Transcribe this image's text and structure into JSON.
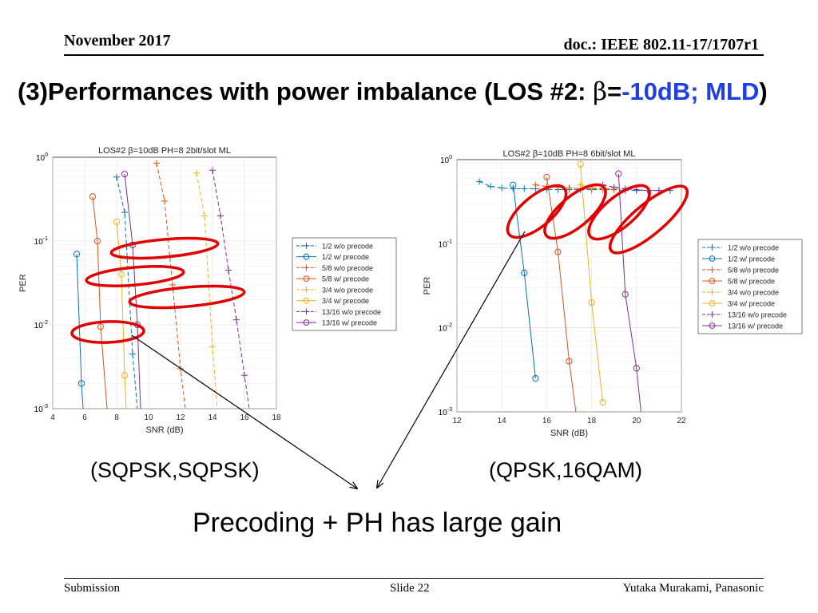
{
  "header": {
    "date": "November 2017",
    "doc": "doc.: IEEE 802.11-17/1707r1"
  },
  "title": {
    "part1": "(3)Performances with power imbalance (LOS #2: ",
    "beta": "β",
    "eq": "=",
    "part2": "-10dB; MLD",
    "close": ")"
  },
  "labels": {
    "left": "(SQPSK,SQPSK)",
    "right": "(QPSK,16QAM)"
  },
  "caption": "Precoding + PH has large gain",
  "footer": {
    "left": "Submission",
    "center": "Slide 22",
    "right": "Yutaka Murakami, Panasonic"
  },
  "colors": {
    "title_blue": "#1f3ee6",
    "ellipse_red": "#e00000"
  },
  "chart_data": [
    {
      "type": "line",
      "title": "LOS#2 β=10dB PH=8 2bit/slot ML",
      "xlabel": "SNR (dB)",
      "ylabel": "PER",
      "xlim": [
        4,
        18
      ],
      "ylim": [
        0.001,
        1
      ],
      "yscale": "log",
      "xticks": [
        4,
        6,
        8,
        10,
        12,
        14,
        16,
        18
      ],
      "ytick_labels": [
        "10^0",
        "10^-1",
        "10^-2",
        "10^-3"
      ],
      "grid": true,
      "legend_position": "right",
      "series": [
        {
          "name": "1/2 w/o precode",
          "color": "#0072bd",
          "dashed": true,
          "marker": "+",
          "points": [
            [
              8,
              0.58
            ],
            [
              8.5,
              0.22
            ],
            [
              9,
              0.0045
            ],
            [
              9.3,
              0.001
            ]
          ]
        },
        {
          "name": "1/2 w/ precode",
          "color": "#0072bd",
          "dashed": false,
          "marker": "o",
          "points": [
            [
              5.5,
              0.07
            ],
            [
              5.8,
              0.002
            ],
            [
              5.9,
              0.001
            ]
          ]
        },
        {
          "name": "5/8 w/o precode",
          "color": "#d95319",
          "dashed": true,
          "marker": "+",
          "points": [
            [
              10.5,
              0.85
            ],
            [
              11,
              0.3
            ],
            [
              11.5,
              0.03
            ],
            [
              12,
              0.003
            ],
            [
              12.3,
              0.001
            ]
          ]
        },
        {
          "name": "5/8 w/ precode",
          "color": "#d95319",
          "dashed": false,
          "marker": "o",
          "points": [
            [
              6.5,
              0.34
            ],
            [
              6.8,
              0.1
            ],
            [
              7,
              0.0095
            ],
            [
              7.4,
              0.001
            ]
          ]
        },
        {
          "name": "3/4 w/o precode",
          "color": "#edb120",
          "dashed": true,
          "marker": "+",
          "points": [
            [
              13,
              0.65
            ],
            [
              13.5,
              0.2
            ],
            [
              14,
              0.0055
            ],
            [
              14.3,
              0.001
            ]
          ]
        },
        {
          "name": "3/4 w/ precode",
          "color": "#edb120",
          "dashed": false,
          "marker": "o",
          "points": [
            [
              8,
              0.17
            ],
            [
              8.3,
              0.04
            ],
            [
              8.5,
              0.0025
            ],
            [
              8.6,
              0.001
            ]
          ]
        },
        {
          "name": "13/16 w/o precode",
          "color": "#7e2f8e",
          "dashed": true,
          "marker": "+",
          "points": [
            [
              14,
              0.7
            ],
            [
              14.5,
              0.2
            ],
            [
              15,
              0.045
            ],
            [
              15.5,
              0.0115
            ],
            [
              16,
              0.0025
            ],
            [
              16.3,
              0.001
            ]
          ]
        },
        {
          "name": "13/16 w/ precode",
          "color": "#7e2f8e",
          "dashed": false,
          "marker": "o",
          "points": [
            [
              8.5,
              0.63
            ],
            [
              9,
              0.09
            ],
            [
              9.3,
              0.01
            ],
            [
              9.5,
              0.001
            ]
          ]
        }
      ]
    },
    {
      "type": "line",
      "title": "LOS#2 β=10dB PH=8 6bit/slot ML",
      "xlabel": "SNR (dB)",
      "ylabel": "PER",
      "xlim": [
        12,
        22
      ],
      "ylim": [
        0.001,
        1
      ],
      "yscale": "log",
      "xticks": [
        12,
        14,
        16,
        18,
        20,
        22
      ],
      "ytick_labels": [
        "10^0",
        "10^-1",
        "10^-2",
        "10^-3"
      ],
      "grid": true,
      "legend_position": "right",
      "series": [
        {
          "name": "1/2 w/o precode",
          "color": "#0072bd",
          "dashed": true,
          "marker": "+",
          "points": [
            [
              13,
              0.55
            ],
            [
              13.5,
              0.48
            ],
            [
              14,
              0.46
            ],
            [
              14.5,
              0.45
            ],
            [
              15,
              0.45
            ],
            [
              15.5,
              0.45
            ],
            [
              16,
              0.44
            ],
            [
              16.5,
              0.44
            ],
            [
              17,
              0.44
            ],
            [
              17.5,
              0.44
            ],
            [
              18,
              0.44
            ],
            [
              18.5,
              0.44
            ],
            [
              19,
              0.44
            ],
            [
              19.5,
              0.43
            ],
            [
              20,
              0.43
            ],
            [
              20.5,
              0.43
            ],
            [
              21,
              0.43
            ],
            [
              21.5,
              0.43
            ]
          ]
        },
        {
          "name": "1/2 w/ precode",
          "color": "#0072bd",
          "dashed": false,
          "marker": "o",
          "points": [
            [
              14.5,
              0.5
            ],
            [
              15,
              0.045
            ],
            [
              15.5,
              0.0025
            ]
          ]
        },
        {
          "name": "5/8 w/o precode",
          "color": "#d95319",
          "dashed": true,
          "marker": "+",
          "points": [
            [
              15.5,
              0.5
            ],
            [
              16,
              0.48
            ],
            [
              16.5,
              0.47
            ],
            [
              17,
              0.46
            ],
            [
              17.5,
              0.45
            ],
            [
              18,
              0.45
            ],
            [
              18.5,
              0.45
            ],
            [
              19,
              0.44
            ]
          ]
        },
        {
          "name": "5/8 w/ precode",
          "color": "#d95319",
          "dashed": false,
          "marker": "o",
          "points": [
            [
              16,
              0.62
            ],
            [
              16.5,
              0.08
            ],
            [
              17,
              0.004
            ],
            [
              17.3,
              0.001
            ]
          ]
        },
        {
          "name": "3/4 w/o precode",
          "color": "#edb120",
          "dashed": true,
          "marker": "+",
          "points": [
            [
              17.5,
              0.5
            ],
            [
              18,
              0.47
            ],
            [
              18.5,
              0.46
            ],
            [
              19,
              0.45
            ]
          ]
        },
        {
          "name": "3/4 w/ precode",
          "color": "#edb120",
          "dashed": false,
          "marker": "o",
          "points": [
            [
              17.5,
              0.88
            ],
            [
              18,
              0.02
            ],
            [
              18.5,
              0.0013
            ]
          ]
        },
        {
          "name": "13/16 w/o precode",
          "color": "#7e2f8e",
          "dashed": true,
          "marker": "+",
          "points": [
            [
              18.5,
              0.5
            ],
            [
              19,
              0.47
            ],
            [
              19.5,
              0.45
            ],
            [
              20,
              0.44
            ],
            [
              20.5,
              0.43
            ],
            [
              21,
              0.43
            ]
          ]
        },
        {
          "name": "13/16 w/ precode",
          "color": "#7e2f8e",
          "dashed": false,
          "marker": "o",
          "points": [
            [
              19.2,
              0.68
            ],
            [
              19.5,
              0.025
            ],
            [
              20,
              0.0033
            ],
            [
              20.2,
              0.001
            ]
          ]
        }
      ]
    }
  ]
}
